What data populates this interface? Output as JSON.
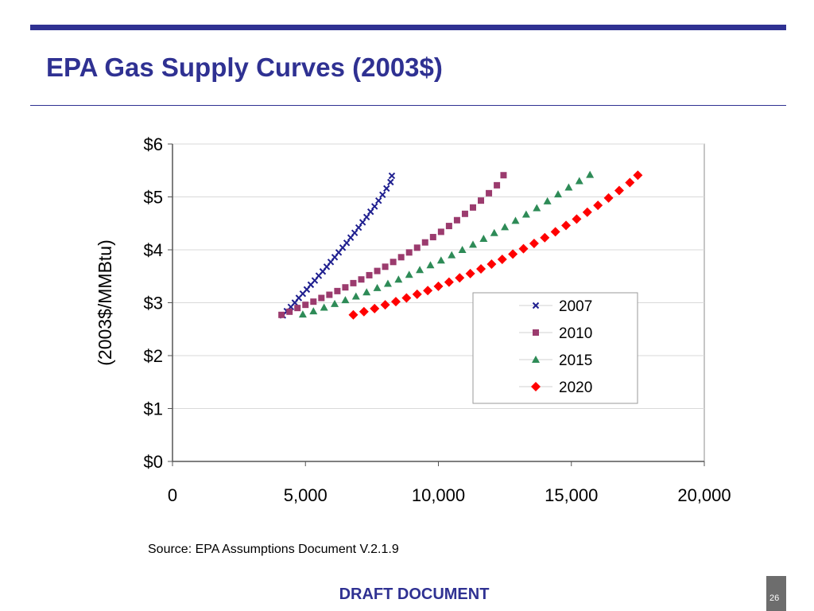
{
  "slide": {
    "title": "EPA Gas Supply Curves (2003$)",
    "source": "Source: EPA Assumptions Document V.2.1.9",
    "footer": "DRAFT DOCUMENT",
    "page_number": "26"
  },
  "colors": {
    "accent": "#2f3192",
    "grid": "#d9d9d9"
  },
  "chart_data": {
    "type": "scatter",
    "title": "",
    "xlabel": "",
    "ylabel": "(2003$/MMBtu)",
    "xlim": [
      0,
      20000
    ],
    "ylim": [
      0,
      6
    ],
    "x_ticks": [
      0,
      5000,
      10000,
      15000,
      20000
    ],
    "x_tick_labels": [
      "0",
      "5,000",
      "10,000",
      "15,000",
      "20,000"
    ],
    "y_ticks": [
      0,
      1,
      2,
      3,
      4,
      5,
      6
    ],
    "y_tick_labels": [
      "$0",
      "$1",
      "$2",
      "$3",
      "$4",
      "$5",
      "$6"
    ],
    "grid": "horizontal",
    "legend_position": "right-center",
    "series": [
      {
        "name": "2007",
        "marker": "x",
        "color": "#1f1f8f",
        "points": [
          [
            4150,
            2.76
          ],
          [
            4300,
            2.84
          ],
          [
            4450,
            2.92
          ],
          [
            4600,
            3.0
          ],
          [
            4750,
            3.09
          ],
          [
            4900,
            3.17
          ],
          [
            5050,
            3.25
          ],
          [
            5200,
            3.34
          ],
          [
            5350,
            3.42
          ],
          [
            5500,
            3.51
          ],
          [
            5650,
            3.59
          ],
          [
            5800,
            3.68
          ],
          [
            5950,
            3.77
          ],
          [
            6100,
            3.86
          ],
          [
            6250,
            3.95
          ],
          [
            6400,
            4.04
          ],
          [
            6550,
            4.13
          ],
          [
            6700,
            4.23
          ],
          [
            6850,
            4.32
          ],
          [
            7000,
            4.42
          ],
          [
            7150,
            4.52
          ],
          [
            7300,
            4.62
          ],
          [
            7450,
            4.72
          ],
          [
            7600,
            4.82
          ],
          [
            7750,
            4.93
          ],
          [
            7900,
            5.04
          ],
          [
            8050,
            5.16
          ],
          [
            8200,
            5.28
          ],
          [
            8250,
            5.4
          ]
        ]
      },
      {
        "name": "2010",
        "marker": "square",
        "color": "#9b3b6e",
        "points": [
          [
            4100,
            2.77
          ],
          [
            4400,
            2.83
          ],
          [
            4700,
            2.9
          ],
          [
            5000,
            2.96
          ],
          [
            5300,
            3.02
          ],
          [
            5600,
            3.09
          ],
          [
            5900,
            3.15
          ],
          [
            6200,
            3.22
          ],
          [
            6500,
            3.29
          ],
          [
            6800,
            3.37
          ],
          [
            7100,
            3.44
          ],
          [
            7400,
            3.52
          ],
          [
            7700,
            3.6
          ],
          [
            8000,
            3.68
          ],
          [
            8300,
            3.77
          ],
          [
            8600,
            3.86
          ],
          [
            8900,
            3.95
          ],
          [
            9200,
            4.04
          ],
          [
            9500,
            4.14
          ],
          [
            9800,
            4.24
          ],
          [
            10100,
            4.34
          ],
          [
            10400,
            4.45
          ],
          [
            10700,
            4.56
          ],
          [
            11000,
            4.68
          ],
          [
            11300,
            4.8
          ],
          [
            11600,
            4.93
          ],
          [
            11900,
            5.07
          ],
          [
            12200,
            5.22
          ],
          [
            12450,
            5.41
          ]
        ]
      },
      {
        "name": "2015",
        "marker": "triangle",
        "color": "#2e8b57",
        "points": [
          [
            4900,
            2.78
          ],
          [
            5300,
            2.84
          ],
          [
            5700,
            2.91
          ],
          [
            6100,
            2.98
          ],
          [
            6500,
            3.05
          ],
          [
            6900,
            3.12
          ],
          [
            7300,
            3.2
          ],
          [
            7700,
            3.28
          ],
          [
            8100,
            3.36
          ],
          [
            8500,
            3.44
          ],
          [
            8900,
            3.53
          ],
          [
            9300,
            3.62
          ],
          [
            9700,
            3.71
          ],
          [
            10100,
            3.8
          ],
          [
            10500,
            3.9
          ],
          [
            10900,
            4.0
          ],
          [
            11300,
            4.1
          ],
          [
            11700,
            4.21
          ],
          [
            12100,
            4.32
          ],
          [
            12500,
            4.43
          ],
          [
            12900,
            4.55
          ],
          [
            13300,
            4.67
          ],
          [
            13700,
            4.79
          ],
          [
            14100,
            4.92
          ],
          [
            14500,
            5.05
          ],
          [
            14900,
            5.18
          ],
          [
            15300,
            5.3
          ],
          [
            15700,
            5.42
          ]
        ]
      },
      {
        "name": "2020",
        "marker": "diamond",
        "color": "#ff0000",
        "points": [
          [
            6800,
            2.77
          ],
          [
            7200,
            2.83
          ],
          [
            7600,
            2.89
          ],
          [
            8000,
            2.96
          ],
          [
            8400,
            3.02
          ],
          [
            8800,
            3.09
          ],
          [
            9200,
            3.16
          ],
          [
            9600,
            3.23
          ],
          [
            10000,
            3.31
          ],
          [
            10400,
            3.39
          ],
          [
            10800,
            3.47
          ],
          [
            11200,
            3.55
          ],
          [
            11600,
            3.64
          ],
          [
            12000,
            3.73
          ],
          [
            12400,
            3.82
          ],
          [
            12800,
            3.92
          ],
          [
            13200,
            4.02
          ],
          [
            13600,
            4.12
          ],
          [
            14000,
            4.23
          ],
          [
            14400,
            4.34
          ],
          [
            14800,
            4.46
          ],
          [
            15200,
            4.58
          ],
          [
            15600,
            4.71
          ],
          [
            16000,
            4.84
          ],
          [
            16400,
            4.98
          ],
          [
            16800,
            5.12
          ],
          [
            17200,
            5.27
          ],
          [
            17500,
            5.41
          ]
        ]
      }
    ]
  }
}
